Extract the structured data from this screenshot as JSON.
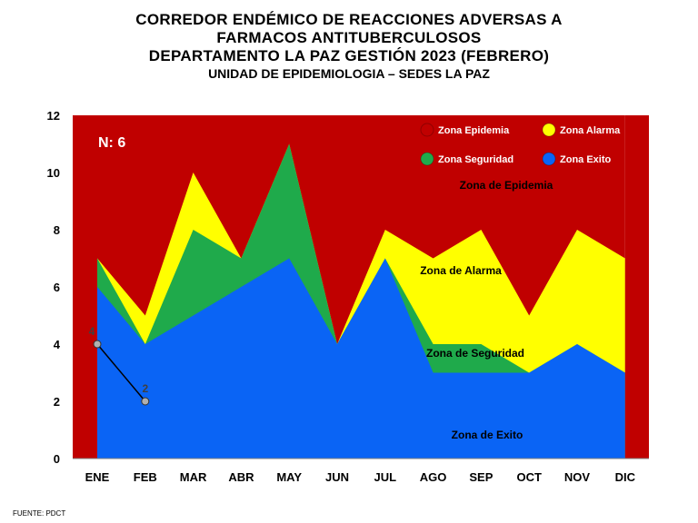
{
  "header": {
    "title_line1": "CORREDOR ENDÉMICO DE REACCIONES ADVERSAS A",
    "title_line2": "FARMACOS ANTITUBERCULOSOS",
    "title_line3": "DEPARTAMENTO LA PAZ GESTIÓN 2023 (FEBRERO)",
    "subtitle": "UNIDAD DE EPIDEMIOLOGIA – SEDES LA PAZ"
  },
  "source": "FUENTE: PDCT",
  "colors": {
    "epidemia": "#c00000",
    "alarma": "#ffff00",
    "seguridad": "#1faa4b",
    "exito": "#0a64f5",
    "observed_line": "#000000",
    "observed_marker": "#b0b0b0"
  },
  "chart_data": {
    "type": "area",
    "categories": [
      "ENE",
      "FEB",
      "MAR",
      "ABR",
      "MAY",
      "JUN",
      "JUL",
      "AGO",
      "SEP",
      "OCT",
      "NOV",
      "DIC"
    ],
    "ylim": [
      0,
      12
    ],
    "yticks": [
      0,
      2,
      4,
      6,
      8,
      10,
      12
    ],
    "grid": false,
    "legend_position": "top-right",
    "n_label": "N: 6",
    "series": [
      {
        "name": "Zona Exito",
        "values": [
          6,
          4,
          5,
          6,
          7,
          4,
          7,
          3,
          3,
          3,
          4,
          3
        ]
      },
      {
        "name": "Zona Seguridad",
        "values": [
          7,
          4,
          8,
          7,
          11,
          4,
          7,
          4,
          4,
          3,
          4,
          3
        ]
      },
      {
        "name": "Zona Alarma",
        "values": [
          7,
          5,
          10,
          7,
          11,
          4,
          8,
          7,
          8,
          5,
          8,
          7
        ]
      },
      {
        "name": "Zona Epidemia",
        "values": [
          12,
          12,
          12,
          12,
          12,
          12,
          12,
          12,
          12,
          12,
          12,
          12
        ]
      }
    ],
    "observed": {
      "categories": [
        "ENE",
        "FEB"
      ],
      "values": [
        4,
        2
      ],
      "labels": [
        "4",
        "2"
      ]
    },
    "zone_labels": [
      "Zona de Epidemia",
      "Zona de Alarma",
      "Zona de Seguridad",
      "Zona de Exito"
    ],
    "legend": [
      "Zona Epidemia",
      "Zona Alarma",
      "Zona Seguridad",
      "Zona Exito"
    ]
  }
}
